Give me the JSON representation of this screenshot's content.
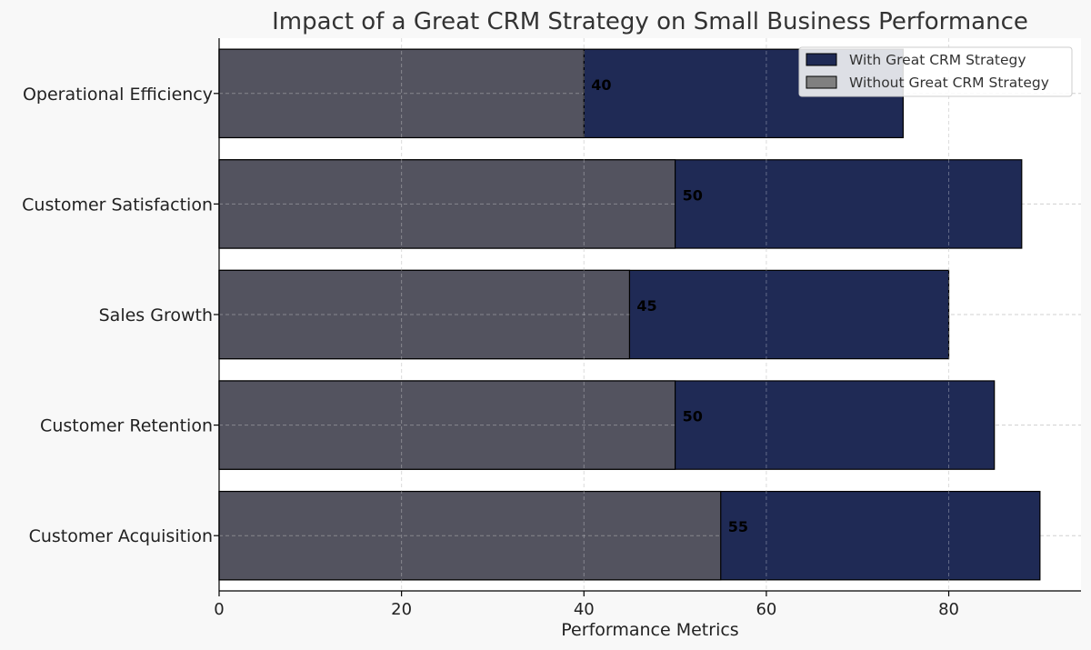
{
  "chart_data": {
    "type": "bar",
    "orientation": "horizontal",
    "title": "Impact of a Great CRM Strategy on Small Business Performance",
    "xlabel": "Performance Metrics",
    "ylabel": "",
    "xlim": [
      0,
      94.5
    ],
    "xticks": [
      0,
      20,
      40,
      60,
      80
    ],
    "grid": true,
    "legend_position": "top-right",
    "categories": [
      "Customer Acquisition",
      "Customer Retention",
      "Sales Growth",
      "Customer Satisfaction",
      "Operational Efficiency"
    ],
    "series": [
      {
        "name": "With Great CRM Strategy",
        "values": [
          90,
          85,
          80,
          88,
          75
        ],
        "color": "#1f2a55"
      },
      {
        "name": "Without Great CRM Strategy",
        "values": [
          55,
          50,
          45,
          50,
          40
        ],
        "color": "#808080"
      }
    ],
    "data_labels": [
      "55",
      "50",
      "45",
      "50",
      "40"
    ]
  },
  "colors": {
    "with_bar": "#1f2a55",
    "without_bar": "#53535f",
    "without_legend": "#808080",
    "page_background": "#f8f8f8",
    "plot_background": "#ffffff"
  }
}
